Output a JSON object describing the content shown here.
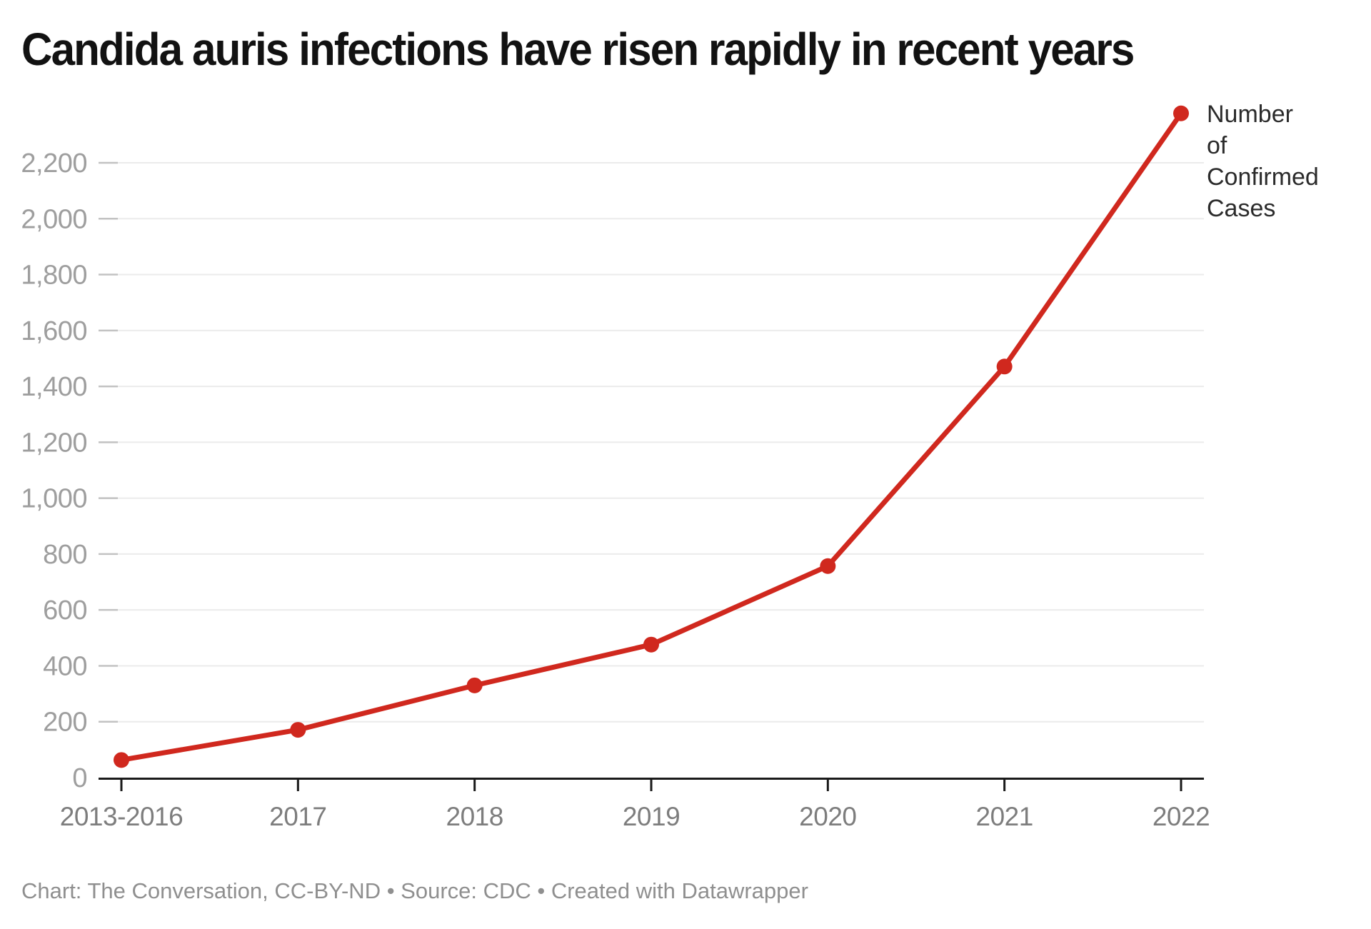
{
  "title": "Candida auris infections have risen rapidly in recent years",
  "legend": {
    "label": "Number\nof\nConfirmed\nCases"
  },
  "footer": {
    "credit": "Chart: The Conversation, CC-BY-ND • Source: CDC • Created with Datawrapper"
  },
  "colors": {
    "line": "#d0281e",
    "point": "#d0281e",
    "grid": "#ebebeb",
    "grid_dash": "#c2c2c2",
    "axis": "#1a1a1a",
    "y_label": "#9e9e9e",
    "x_label": "#7d7d7d",
    "legend_text": "#2b2b2b",
    "footer_text": "#8f8f8f",
    "title_text": "#121212"
  },
  "chart_data": {
    "type": "line",
    "title": "Candida auris infections have risen rapidly in recent years",
    "categories": [
      "2013-2016",
      "2017",
      "2018",
      "2019",
      "2020",
      "2021",
      "2022"
    ],
    "series": [
      {
        "name": "Number of Confirmed Cases",
        "color": "#d0281e",
        "values": [
          63,
          171,
          330,
          476,
          757,
          1471,
          2377
        ]
      }
    ],
    "xlabel": "",
    "ylabel": "",
    "ylim": [
      0,
      2400
    ],
    "y_ticks": [
      0,
      200,
      400,
      600,
      800,
      1000,
      1200,
      1400,
      1600,
      1800,
      2000,
      2200
    ],
    "y_tick_labels": [
      "0",
      "200",
      "400",
      "600",
      "800",
      "1,000",
      "1,200",
      "1,400",
      "1,600",
      "1,800",
      "2,000",
      "2,200"
    ],
    "grid": true,
    "legend_position": "right-of-last-point",
    "source": "CDC",
    "credit": "Chart: The Conversation, CC-BY-ND • Source: CDC • Created with Datawrapper"
  }
}
